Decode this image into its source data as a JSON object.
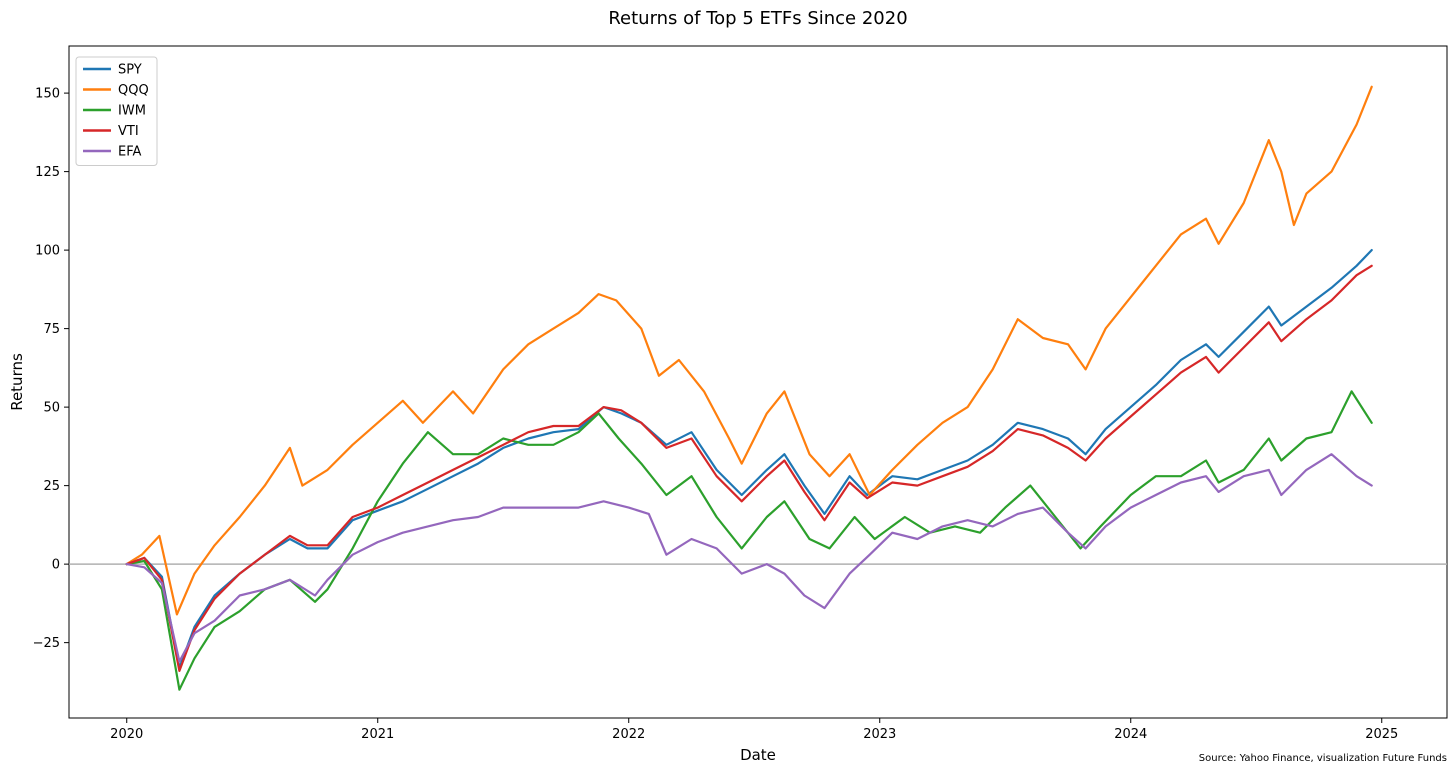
{
  "chart_data": {
    "type": "line",
    "title": "Returns of Top 5 ETFs Since 2020",
    "xlabel": "Date",
    "ylabel": "Returns",
    "source_note": "Source: Yahoo Finance, visualization Future Funds",
    "xlim": [
      2019.77,
      2025.26
    ],
    "ylim": [
      -49,
      165
    ],
    "x_ticks": [
      {
        "value": 2020,
        "label": "2020"
      },
      {
        "value": 2021,
        "label": "2021"
      },
      {
        "value": 2022,
        "label": "2022"
      },
      {
        "value": 2023,
        "label": "2023"
      },
      {
        "value": 2024,
        "label": "2024"
      },
      {
        "value": 2025,
        "label": "2025"
      }
    ],
    "y_ticks": [
      {
        "value": -25,
        "label": "−25"
      },
      {
        "value": 0,
        "label": "0"
      },
      {
        "value": 25,
        "label": "25"
      },
      {
        "value": 50,
        "label": "50"
      },
      {
        "value": 75,
        "label": "75"
      },
      {
        "value": 100,
        "label": "100"
      },
      {
        "value": 125,
        "label": "125"
      },
      {
        "value": 150,
        "label": "150"
      }
    ],
    "zero_line": 0,
    "grid": false,
    "legend_position": "top-left",
    "series": [
      {
        "name": "SPY",
        "color": "#1f77b4",
        "points": [
          [
            2020.0,
            0
          ],
          [
            2020.07,
            2
          ],
          [
            2020.14,
            -4
          ],
          [
            2020.21,
            -33
          ],
          [
            2020.27,
            -20
          ],
          [
            2020.35,
            -10
          ],
          [
            2020.45,
            -3
          ],
          [
            2020.55,
            3
          ],
          [
            2020.65,
            8
          ],
          [
            2020.72,
            5
          ],
          [
            2020.8,
            5
          ],
          [
            2020.9,
            14
          ],
          [
            2021.0,
            17
          ],
          [
            2021.1,
            20
          ],
          [
            2021.2,
            24
          ],
          [
            2021.3,
            28
          ],
          [
            2021.4,
            32
          ],
          [
            2021.5,
            37
          ],
          [
            2021.6,
            40
          ],
          [
            2021.7,
            42
          ],
          [
            2021.8,
            43
          ],
          [
            2021.9,
            50
          ],
          [
            2021.97,
            48
          ],
          [
            2022.05,
            45
          ],
          [
            2022.15,
            38
          ],
          [
            2022.25,
            42
          ],
          [
            2022.35,
            30
          ],
          [
            2022.45,
            22
          ],
          [
            2022.55,
            30
          ],
          [
            2022.62,
            35
          ],
          [
            2022.7,
            25
          ],
          [
            2022.78,
            16
          ],
          [
            2022.88,
            28
          ],
          [
            2022.95,
            22
          ],
          [
            2023.05,
            28
          ],
          [
            2023.15,
            27
          ],
          [
            2023.25,
            30
          ],
          [
            2023.35,
            33
          ],
          [
            2023.45,
            38
          ],
          [
            2023.55,
            45
          ],
          [
            2023.65,
            43
          ],
          [
            2023.75,
            40
          ],
          [
            2023.82,
            35
          ],
          [
            2023.9,
            43
          ],
          [
            2024.0,
            50
          ],
          [
            2024.1,
            57
          ],
          [
            2024.2,
            65
          ],
          [
            2024.3,
            70
          ],
          [
            2024.35,
            66
          ],
          [
            2024.45,
            74
          ],
          [
            2024.55,
            82
          ],
          [
            2024.6,
            76
          ],
          [
            2024.7,
            82
          ],
          [
            2024.8,
            88
          ],
          [
            2024.9,
            95
          ],
          [
            2024.96,
            100
          ]
        ]
      },
      {
        "name": "QQQ",
        "color": "#ff7f0e",
        "points": [
          [
            2020.0,
            0
          ],
          [
            2020.06,
            3
          ],
          [
            2020.13,
            9
          ],
          [
            2020.2,
            -16
          ],
          [
            2020.27,
            -3
          ],
          [
            2020.35,
            6
          ],
          [
            2020.45,
            15
          ],
          [
            2020.55,
            25
          ],
          [
            2020.65,
            37
          ],
          [
            2020.7,
            25
          ],
          [
            2020.8,
            30
          ],
          [
            2020.9,
            38
          ],
          [
            2021.0,
            45
          ],
          [
            2021.1,
            52
          ],
          [
            2021.18,
            45
          ],
          [
            2021.3,
            55
          ],
          [
            2021.38,
            48
          ],
          [
            2021.5,
            62
          ],
          [
            2021.6,
            70
          ],
          [
            2021.7,
            75
          ],
          [
            2021.8,
            80
          ],
          [
            2021.88,
            86
          ],
          [
            2021.95,
            84
          ],
          [
            2022.05,
            75
          ],
          [
            2022.12,
            60
          ],
          [
            2022.2,
            65
          ],
          [
            2022.3,
            55
          ],
          [
            2022.4,
            40
          ],
          [
            2022.45,
            32
          ],
          [
            2022.55,
            48
          ],
          [
            2022.62,
            55
          ],
          [
            2022.72,
            35
          ],
          [
            2022.8,
            28
          ],
          [
            2022.88,
            35
          ],
          [
            2022.96,
            22
          ],
          [
            2023.05,
            30
          ],
          [
            2023.15,
            38
          ],
          [
            2023.25,
            45
          ],
          [
            2023.35,
            50
          ],
          [
            2023.45,
            62
          ],
          [
            2023.55,
            78
          ],
          [
            2023.65,
            72
          ],
          [
            2023.75,
            70
          ],
          [
            2023.82,
            62
          ],
          [
            2023.9,
            75
          ],
          [
            2024.0,
            85
          ],
          [
            2024.1,
            95
          ],
          [
            2024.2,
            105
          ],
          [
            2024.3,
            110
          ],
          [
            2024.35,
            102
          ],
          [
            2024.45,
            115
          ],
          [
            2024.55,
            135
          ],
          [
            2024.6,
            125
          ],
          [
            2024.65,
            108
          ],
          [
            2024.7,
            118
          ],
          [
            2024.8,
            125
          ],
          [
            2024.9,
            140
          ],
          [
            2024.96,
            152
          ]
        ]
      },
      {
        "name": "IWM",
        "color": "#2ca02c",
        "points": [
          [
            2020.0,
            0
          ],
          [
            2020.07,
            1
          ],
          [
            2020.14,
            -8
          ],
          [
            2020.21,
            -40
          ],
          [
            2020.27,
            -30
          ],
          [
            2020.35,
            -20
          ],
          [
            2020.45,
            -15
          ],
          [
            2020.55,
            -8
          ],
          [
            2020.65,
            -5
          ],
          [
            2020.75,
            -12
          ],
          [
            2020.8,
            -8
          ],
          [
            2020.9,
            5
          ],
          [
            2021.0,
            20
          ],
          [
            2021.1,
            32
          ],
          [
            2021.2,
            42
          ],
          [
            2021.3,
            35
          ],
          [
            2021.4,
            35
          ],
          [
            2021.5,
            40
          ],
          [
            2021.6,
            38
          ],
          [
            2021.7,
            38
          ],
          [
            2021.8,
            42
          ],
          [
            2021.88,
            48
          ],
          [
            2021.96,
            40
          ],
          [
            2022.05,
            32
          ],
          [
            2022.15,
            22
          ],
          [
            2022.25,
            28
          ],
          [
            2022.35,
            15
          ],
          [
            2022.45,
            5
          ],
          [
            2022.55,
            15
          ],
          [
            2022.62,
            20
          ],
          [
            2022.72,
            8
          ],
          [
            2022.8,
            5
          ],
          [
            2022.9,
            15
          ],
          [
            2022.98,
            8
          ],
          [
            2023.1,
            15
          ],
          [
            2023.2,
            10
          ],
          [
            2023.3,
            12
          ],
          [
            2023.4,
            10
          ],
          [
            2023.5,
            18
          ],
          [
            2023.6,
            25
          ],
          [
            2023.7,
            15
          ],
          [
            2023.8,
            5
          ],
          [
            2023.88,
            12
          ],
          [
            2024.0,
            22
          ],
          [
            2024.1,
            28
          ],
          [
            2024.2,
            28
          ],
          [
            2024.3,
            33
          ],
          [
            2024.35,
            26
          ],
          [
            2024.45,
            30
          ],
          [
            2024.55,
            40
          ],
          [
            2024.6,
            33
          ],
          [
            2024.7,
            40
          ],
          [
            2024.8,
            42
          ],
          [
            2024.88,
            55
          ],
          [
            2024.96,
            45
          ]
        ]
      },
      {
        "name": "VTI",
        "color": "#d62728",
        "points": [
          [
            2020.0,
            0
          ],
          [
            2020.07,
            2
          ],
          [
            2020.14,
            -5
          ],
          [
            2020.21,
            -34
          ],
          [
            2020.27,
            -21
          ],
          [
            2020.35,
            -11
          ],
          [
            2020.45,
            -3
          ],
          [
            2020.55,
            3
          ],
          [
            2020.65,
            9
          ],
          [
            2020.72,
            6
          ],
          [
            2020.8,
            6
          ],
          [
            2020.9,
            15
          ],
          [
            2021.0,
            18
          ],
          [
            2021.1,
            22
          ],
          [
            2021.2,
            26
          ],
          [
            2021.3,
            30
          ],
          [
            2021.4,
            34
          ],
          [
            2021.5,
            38
          ],
          [
            2021.6,
            42
          ],
          [
            2021.7,
            44
          ],
          [
            2021.8,
            44
          ],
          [
            2021.9,
            50
          ],
          [
            2021.97,
            49
          ],
          [
            2022.05,
            45
          ],
          [
            2022.15,
            37
          ],
          [
            2022.25,
            40
          ],
          [
            2022.35,
            28
          ],
          [
            2022.45,
            20
          ],
          [
            2022.55,
            28
          ],
          [
            2022.62,
            33
          ],
          [
            2022.7,
            23
          ],
          [
            2022.78,
            14
          ],
          [
            2022.88,
            26
          ],
          [
            2022.95,
            21
          ],
          [
            2023.05,
            26
          ],
          [
            2023.15,
            25
          ],
          [
            2023.25,
            28
          ],
          [
            2023.35,
            31
          ],
          [
            2023.45,
            36
          ],
          [
            2023.55,
            43
          ],
          [
            2023.65,
            41
          ],
          [
            2023.75,
            37
          ],
          [
            2023.82,
            33
          ],
          [
            2023.9,
            40
          ],
          [
            2024.0,
            47
          ],
          [
            2024.1,
            54
          ],
          [
            2024.2,
            61
          ],
          [
            2024.3,
            66
          ],
          [
            2024.35,
            61
          ],
          [
            2024.45,
            69
          ],
          [
            2024.55,
            77
          ],
          [
            2024.6,
            71
          ],
          [
            2024.7,
            78
          ],
          [
            2024.8,
            84
          ],
          [
            2024.9,
            92
          ],
          [
            2024.96,
            95
          ]
        ]
      },
      {
        "name": "EFA",
        "color": "#9467bd",
        "points": [
          [
            2020.0,
            0
          ],
          [
            2020.07,
            -1
          ],
          [
            2020.14,
            -6
          ],
          [
            2020.21,
            -31
          ],
          [
            2020.27,
            -22
          ],
          [
            2020.35,
            -18
          ],
          [
            2020.45,
            -10
          ],
          [
            2020.55,
            -8
          ],
          [
            2020.65,
            -5
          ],
          [
            2020.75,
            -10
          ],
          [
            2020.8,
            -5
          ],
          [
            2020.9,
            3
          ],
          [
            2021.0,
            7
          ],
          [
            2021.1,
            10
          ],
          [
            2021.2,
            12
          ],
          [
            2021.3,
            14
          ],
          [
            2021.4,
            15
          ],
          [
            2021.5,
            18
          ],
          [
            2021.6,
            18
          ],
          [
            2021.7,
            18
          ],
          [
            2021.8,
            18
          ],
          [
            2021.9,
            20
          ],
          [
            2022.0,
            18
          ],
          [
            2022.08,
            16
          ],
          [
            2022.15,
            3
          ],
          [
            2022.25,
            8
          ],
          [
            2022.35,
            5
          ],
          [
            2022.45,
            -3
          ],
          [
            2022.55,
            0
          ],
          [
            2022.62,
            -3
          ],
          [
            2022.7,
            -10
          ],
          [
            2022.78,
            -14
          ],
          [
            2022.88,
            -3
          ],
          [
            2022.96,
            3
          ],
          [
            2023.05,
            10
          ],
          [
            2023.15,
            8
          ],
          [
            2023.25,
            12
          ],
          [
            2023.35,
            14
          ],
          [
            2023.45,
            12
          ],
          [
            2023.55,
            16
          ],
          [
            2023.65,
            18
          ],
          [
            2023.75,
            10
          ],
          [
            2023.82,
            5
          ],
          [
            2023.9,
            12
          ],
          [
            2024.0,
            18
          ],
          [
            2024.1,
            22
          ],
          [
            2024.2,
            26
          ],
          [
            2024.3,
            28
          ],
          [
            2024.35,
            23
          ],
          [
            2024.45,
            28
          ],
          [
            2024.55,
            30
          ],
          [
            2024.6,
            22
          ],
          [
            2024.7,
            30
          ],
          [
            2024.8,
            35
          ],
          [
            2024.9,
            28
          ],
          [
            2024.96,
            25
          ]
        ]
      }
    ]
  }
}
